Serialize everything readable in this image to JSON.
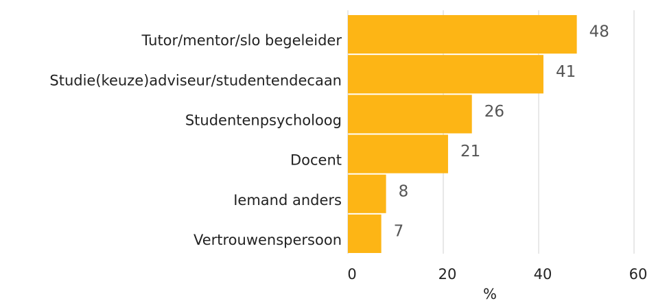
{
  "chart_data": {
    "type": "barh",
    "categories": [
      "Tutor/mentor/slo begeleider",
      "Studie(keuze)adviseur/studentendecaan",
      "Studentenpsycholoog",
      "Docent",
      "Iemand anders",
      "Vertrouwenspersoon"
    ],
    "values": [
      48,
      41,
      26,
      21,
      8,
      7
    ],
    "color": "#fdb515",
    "xlabel": "%",
    "xlim": [
      0,
      60
    ],
    "xticks": [
      0,
      20,
      40,
      60
    ],
    "grid": true
  }
}
